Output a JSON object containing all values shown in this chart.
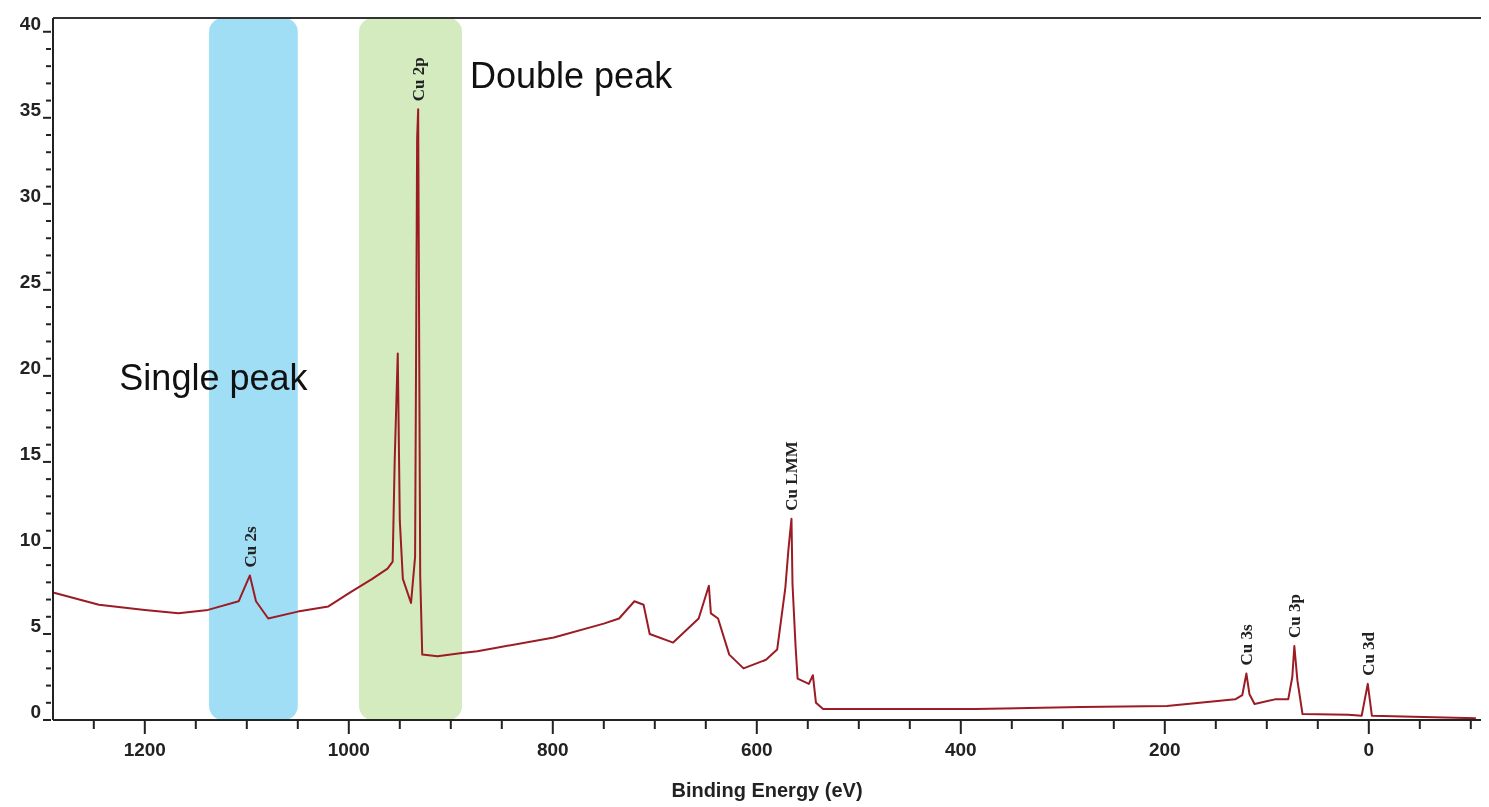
{
  "chart_data": {
    "type": "line",
    "xlabel": "Binding Energy (eV)",
    "xlim": [
      1290,
      -110
    ],
    "xticks": [
      {
        "value": 1250,
        "label": null
      },
      1200,
      {
        "value": 1150,
        "label": null
      },
      {
        "value": 1100,
        "label": null
      },
      {
        "value": 1050,
        "label": null
      },
      1000,
      {
        "value": 950,
        "label": null
      },
      {
        "value": 900,
        "label": null
      },
      {
        "value": 850,
        "label": null
      },
      800,
      {
        "value": 750,
        "label": null
      },
      {
        "value": 700,
        "label": null
      },
      {
        "value": 650,
        "label": null
      },
      600,
      {
        "value": 550,
        "label": null
      },
      {
        "value": 500,
        "label": null
      },
      {
        "value": 450,
        "label": null
      },
      400,
      {
        "value": 350,
        "label": null
      },
      {
        "value": 300,
        "label": null
      },
      {
        "value": 250,
        "label": null
      },
      200,
      {
        "value": 150,
        "label": null
      },
      {
        "value": 100,
        "label": null
      },
      {
        "value": 50,
        "label": null
      },
      0,
      {
        "value": -50,
        "label": null
      },
      {
        "value": -100,
        "label": null
      }
    ],
    "ylim": [
      0,
      40.8
    ],
    "yticks": [
      0,
      {
        "value": 1,
        "label": null
      },
      {
        "value": 2,
        "label": null
      },
      {
        "value": 3,
        "label": null
      },
      {
        "value": 4,
        "label": null
      },
      5,
      {
        "value": 6,
        "label": null
      },
      {
        "value": 7,
        "label": null
      },
      {
        "value": 8,
        "label": null
      },
      {
        "value": 9,
        "label": null
      },
      10,
      {
        "value": 11,
        "label": null
      },
      {
        "value": 12,
        "label": null
      },
      {
        "value": 13,
        "label": null
      },
      {
        "value": 14,
        "label": null
      },
      15,
      {
        "value": 16,
        "label": null
      },
      {
        "value": 17,
        "label": null
      },
      {
        "value": 18,
        "label": null
      },
      {
        "value": 19,
        "label": null
      },
      20,
      {
        "value": 21,
        "label": null
      },
      {
        "value": 22,
        "label": null
      },
      {
        "value": 23,
        "label": null
      },
      {
        "value": 24,
        "label": null
      },
      25,
      {
        "value": 26,
        "label": null
      },
      {
        "value": 27,
        "label": null
      },
      {
        "value": 28,
        "label": null
      },
      {
        "value": 29,
        "label": null
      },
      30,
      {
        "value": 31,
        "label": null
      },
      {
        "value": 32,
        "label": null
      },
      {
        "value": 33,
        "label": null
      },
      {
        "value": 34,
        "label": null
      },
      35,
      {
        "value": 36,
        "label": null
      },
      {
        "value": 37,
        "label": null
      },
      {
        "value": 38,
        "label": null
      },
      {
        "value": 39,
        "label": null
      },
      40
    ],
    "marker": "none",
    "line_style": "solid",
    "series": [
      {
        "color": "#9b1c24",
        "x": [
          1289,
          1245,
          1200,
          1167,
          1138,
          1108,
          1097,
          1091,
          1079,
          1050,
          1020,
          999,
          977,
          962,
          957,
          955,
          952,
          950,
          947,
          939,
          935,
          933,
          932,
          930,
          928,
          913,
          889,
          874,
          855,
          799,
          750,
          735,
          720,
          711,
          705,
          682,
          657,
          647,
          645,
          638,
          627,
          613,
          591,
          580,
          572,
          569,
          566,
          565,
          562,
          560,
          549,
          545,
          542,
          535,
          386,
          282,
          198,
          131,
          124,
          120,
          117,
          112,
          92,
          79,
          75,
          73,
          70,
          65,
          20,
          7,
          1,
          -3,
          -105
        ],
        "values": [
          7.4,
          6.7,
          6.4,
          6.2,
          6.4,
          6.9,
          8.4,
          6.9,
          5.9,
          6.3,
          6.6,
          7.4,
          8.2,
          8.8,
          9.2,
          15.1,
          21.3,
          11.6,
          8.2,
          6.8,
          9.5,
          33.8,
          35.5,
          8.4,
          3.8,
          3.7,
          3.9,
          4.0,
          4.2,
          4.8,
          5.6,
          5.9,
          6.9,
          6.7,
          5.0,
          4.5,
          5.9,
          7.8,
          6.2,
          5.9,
          3.8,
          3.0,
          3.5,
          4.1,
          7.7,
          9.9,
          11.7,
          7.9,
          4.3,
          2.4,
          2.1,
          2.6,
          1.0,
          0.64,
          0.64,
          0.76,
          0.81,
          1.2,
          1.45,
          2.7,
          1.5,
          0.93,
          1.2,
          1.2,
          2.5,
          4.3,
          2.3,
          0.35,
          0.3,
          0.25,
          2.1,
          0.25,
          0.1
        ]
      }
    ],
    "bands": [
      {
        "axis": "x",
        "from": 1137,
        "to": 1050,
        "label": "Single peak",
        "color": "#8fd8f5"
      },
      {
        "axis": "x",
        "from": 990,
        "to": 889,
        "label": "Double peak",
        "color": "#cde8b5"
      }
    ],
    "annotations": [
      {
        "text": "Cu 2s",
        "x": 1097,
        "y": 8.4
      },
      {
        "text": "Cu 2p",
        "x": 932,
        "y": 35.5
      },
      {
        "text": "Cu LMM",
        "x": 566,
        "y": 11.7
      },
      {
        "text": "Cu 3s",
        "x": 120,
        "y": 2.7
      },
      {
        "text": "Cu 3p",
        "x": 73,
        "y": 4.3
      },
      {
        "text": "Cu 3d",
        "x": 1,
        "y": 2.1
      }
    ]
  }
}
